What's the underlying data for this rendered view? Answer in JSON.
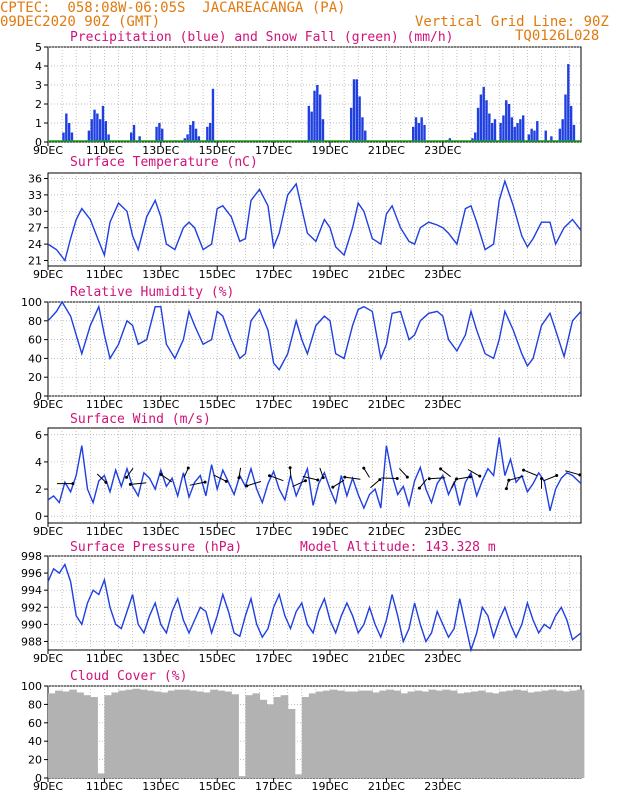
{
  "header": {
    "line1": "CPTEC:  058:08W-06:05S  JACAREACANGA (PA)",
    "line2": "09DEC2020 90Z (GMT)",
    "grid_note": "Vertical Grid Line: 90Z",
    "code": "TQ0126L028"
  },
  "days": [
    "9DEC",
    "11DEC",
    "13DEC",
    "15DEC",
    "17DEC",
    "19DEC",
    "21DEC",
    "23DEC"
  ],
  "colors": {
    "line": "#1f3fe0",
    "snow": "#18a018",
    "cloud": "#b2b2b2",
    "title": "#d0127a",
    "header": "#e07a10"
  },
  "chart_data": [
    {
      "type": "bar",
      "title": "Precipitation (blue) and Snow Fall (green) (mm/h)",
      "ylim": [
        0,
        5
      ],
      "yticks": [
        0,
        1,
        2,
        3,
        4,
        5
      ],
      "series": [
        {
          "name": "Precipitation",
          "color": "#1f3fe0",
          "points": [
            [
              0.55,
              0.5
            ],
            [
              0.65,
              1.5
            ],
            [
              0.75,
              1.0
            ],
            [
              0.85,
              0.5
            ],
            [
              1.45,
              0.6
            ],
            [
              1.55,
              1.2
            ],
            [
              1.65,
              1.7
            ],
            [
              1.75,
              1.5
            ],
            [
              1.85,
              1.2
            ],
            [
              1.95,
              1.9
            ],
            [
              2.05,
              1.1
            ],
            [
              2.15,
              0.4
            ],
            [
              2.95,
              0.5
            ],
            [
              3.05,
              0.9
            ],
            [
              3.25,
              0.3
            ],
            [
              3.85,
              0.8
            ],
            [
              3.95,
              1.0
            ],
            [
              4.05,
              0.7
            ],
            [
              4.85,
              0.2
            ],
            [
              4.95,
              0.4
            ],
            [
              5.05,
              0.9
            ],
            [
              5.15,
              1.1
            ],
            [
              5.25,
              0.7
            ],
            [
              5.35,
              0.3
            ],
            [
              5.65,
              0.8
            ],
            [
              5.75,
              1.0
            ],
            [
              5.85,
              2.8
            ],
            [
              9.25,
              1.9
            ],
            [
              9.35,
              1.6
            ],
            [
              9.45,
              2.7
            ],
            [
              9.55,
              3.0
            ],
            [
              9.65,
              2.5
            ],
            [
              9.75,
              1.2
            ],
            [
              10.75,
              1.8
            ],
            [
              10.85,
              3.3
            ],
            [
              10.95,
              3.3
            ],
            [
              11.05,
              2.4
            ],
            [
              11.15,
              1.3
            ],
            [
              11.25,
              0.6
            ],
            [
              12.95,
              0.8
            ],
            [
              13.05,
              1.3
            ],
            [
              13.15,
              1.0
            ],
            [
              13.25,
              1.3
            ],
            [
              13.35,
              0.9
            ],
            [
              14.15,
              0.1
            ],
            [
              14.25,
              0.2
            ],
            [
              15.05,
              0.2
            ],
            [
              15.15,
              0.5
            ],
            [
              15.25,
              1.8
            ],
            [
              15.35,
              2.5
            ],
            [
              15.45,
              2.9
            ],
            [
              15.55,
              2.2
            ],
            [
              15.65,
              1.5
            ],
            [
              15.75,
              1.0
            ],
            [
              15.85,
              1.2
            ],
            [
              16.05,
              1.0
            ],
            [
              16.15,
              1.4
            ],
            [
              16.25,
              2.2
            ],
            [
              16.35,
              2.0
            ],
            [
              16.45,
              1.3
            ],
            [
              16.55,
              0.8
            ],
            [
              16.65,
              1.0
            ],
            [
              16.75,
              1.2
            ],
            [
              16.85,
              1.4
            ],
            [
              17.05,
              0.4
            ],
            [
              17.15,
              0.7
            ],
            [
              17.25,
              0.6
            ],
            [
              17.35,
              1.1
            ],
            [
              17.65,
              0.6
            ],
            [
              17.85,
              0.3
            ],
            [
              18.15,
              0.7
            ],
            [
              18.25,
              1.2
            ],
            [
              18.35,
              2.5
            ],
            [
              18.45,
              4.1
            ],
            [
              18.55,
              1.9
            ],
            [
              18.65,
              0.9
            ]
          ]
        },
        {
          "name": "Snow Fall",
          "color": "#18a018",
          "points": [
            [
              0,
              0.02
            ],
            [
              18.9,
              0.02
            ],
            [
              14.2,
              0.1
            ]
          ]
        }
      ]
    },
    {
      "type": "line",
      "title": "Surface Temperature (nC)",
      "ylim": [
        20,
        37
      ],
      "yticks": [
        21,
        24,
        27,
        30,
        33,
        36
      ],
      "x": [
        0,
        0.3,
        0.6,
        0.8,
        1.0,
        1.2,
        1.5,
        1.8,
        2.0,
        2.2,
        2.5,
        2.8,
        3.0,
        3.2,
        3.5,
        3.8,
        4.0,
        4.2,
        4.5,
        4.8,
        5.0,
        5.2,
        5.5,
        5.8,
        6.0,
        6.2,
        6.5,
        6.8,
        7.0,
        7.2,
        7.5,
        7.8,
        8.0,
        8.2,
        8.5,
        8.8,
        9.0,
        9.2,
        9.5,
        9.8,
        10.0,
        10.2,
        10.5,
        10.8,
        11.0,
        11.2,
        11.5,
        11.8,
        12.0,
        12.2,
        12.5,
        12.8,
        13.0,
        13.2,
        13.5,
        13.8,
        14.0,
        14.2,
        14.5,
        14.8,
        15.0,
        15.2,
        15.5,
        15.8,
        16.0,
        16.2,
        16.5,
        16.8,
        17.0,
        17.2,
        17.5,
        17.8,
        18.0,
        18.3,
        18.6,
        18.9
      ],
      "values": [
        24.0,
        23.0,
        21.0,
        25.0,
        28.5,
        30.5,
        28.5,
        24.5,
        22.0,
        28.0,
        31.5,
        30.0,
        25.5,
        23.0,
        29.0,
        32.0,
        29.0,
        24.0,
        23.0,
        27.0,
        28.0,
        27.0,
        23.0,
        24.0,
        30.5,
        31.0,
        29.0,
        24.5,
        25.0,
        32.0,
        34.0,
        31.0,
        23.5,
        26.0,
        33.0,
        35.0,
        30.5,
        26.0,
        24.5,
        28.5,
        27.0,
        23.5,
        22.0,
        27.0,
        31.5,
        30.0,
        25.0,
        24.0,
        29.5,
        31.0,
        27.0,
        24.5,
        24.0,
        27.0,
        28.0,
        27.5,
        27.0,
        26.0,
        24.0,
        30.5,
        31.0,
        28.0,
        23.0,
        24.0,
        32.0,
        35.5,
        31.0,
        25.5,
        23.5,
        25.0,
        28.0,
        28.0,
        24.0,
        27.0,
        28.5,
        26.5
      ]
    },
    {
      "type": "line",
      "title": "Relative Humidity (%)",
      "ylim": [
        0,
        100
      ],
      "yticks": [
        0,
        20,
        40,
        60,
        80,
        100
      ],
      "x": [
        0,
        0.3,
        0.5,
        0.8,
        1.0,
        1.2,
        1.5,
        1.8,
        2.0,
        2.2,
        2.5,
        2.8,
        3.0,
        3.2,
        3.5,
        3.8,
        4.0,
        4.2,
        4.5,
        4.8,
        5.0,
        5.2,
        5.5,
        5.8,
        6.0,
        6.2,
        6.5,
        6.8,
        7.0,
        7.2,
        7.5,
        7.8,
        8.0,
        8.2,
        8.5,
        8.8,
        9.0,
        9.2,
        9.5,
        9.8,
        10.0,
        10.2,
        10.5,
        10.8,
        11.0,
        11.2,
        11.5,
        11.8,
        12.0,
        12.2,
        12.5,
        12.8,
        13.0,
        13.2,
        13.5,
        13.8,
        14.0,
        14.2,
        14.5,
        14.8,
        15.0,
        15.2,
        15.5,
        15.8,
        16.0,
        16.2,
        16.5,
        16.8,
        17.0,
        17.2,
        17.5,
        17.8,
        18.0,
        18.3,
        18.6,
        18.9
      ],
      "values": [
        80,
        90,
        100,
        85,
        65,
        45,
        75,
        95,
        65,
        40,
        55,
        80,
        75,
        55,
        60,
        95,
        95,
        55,
        40,
        60,
        90,
        75,
        55,
        60,
        90,
        85,
        60,
        40,
        45,
        80,
        92,
        70,
        35,
        28,
        45,
        80,
        60,
        45,
        75,
        85,
        80,
        45,
        40,
        75,
        92,
        95,
        90,
        40,
        55,
        88,
        90,
        60,
        65,
        80,
        88,
        90,
        85,
        60,
        48,
        65,
        90,
        70,
        45,
        40,
        60,
        90,
        70,
        45,
        32,
        40,
        75,
        88,
        70,
        42,
        80,
        90
      ]
    },
    {
      "type": "line",
      "title": "Surface Wind (m/s)",
      "ylim": [
        -0.5,
        6.5
      ],
      "yticks": [
        0,
        2,
        4,
        6
      ],
      "x": [
        0,
        0.2,
        0.4,
        0.6,
        0.8,
        1.0,
        1.2,
        1.4,
        1.6,
        1.8,
        2.0,
        2.2,
        2.4,
        2.6,
        2.8,
        3.0,
        3.2,
        3.4,
        3.6,
        3.8,
        4.0,
        4.2,
        4.4,
        4.6,
        4.8,
        5.0,
        5.2,
        5.4,
        5.6,
        5.8,
        6.0,
        6.2,
        6.4,
        6.6,
        6.8,
        7.0,
        7.2,
        7.4,
        7.6,
        7.8,
        8.0,
        8.2,
        8.4,
        8.6,
        8.8,
        9.0,
        9.2,
        9.4,
        9.6,
        9.8,
        10.0,
        10.2,
        10.4,
        10.6,
        10.8,
        11.0,
        11.2,
        11.4,
        11.6,
        11.8,
        12.0,
        12.2,
        12.4,
        12.6,
        12.8,
        13.0,
        13.2,
        13.4,
        13.6,
        13.8,
        14.0,
        14.2,
        14.4,
        14.6,
        14.8,
        15.0,
        15.2,
        15.4,
        15.6,
        15.8,
        16.0,
        16.2,
        16.4,
        16.6,
        16.8,
        17.0,
        17.2,
        17.4,
        17.6,
        17.8,
        18.0,
        18.2,
        18.4,
        18.6,
        18.9
      ],
      "values": [
        1.2,
        1.5,
        1.0,
        2.5,
        1.8,
        3.0,
        5.2,
        2.0,
        1.0,
        2.6,
        3.0,
        1.8,
        3.4,
        2.2,
        3.5,
        2.2,
        1.5,
        3.2,
        2.8,
        2.0,
        3.4,
        2.2,
        2.8,
        1.5,
        3.2,
        1.4,
        2.5,
        3.0,
        1.5,
        3.8,
        2.0,
        3.4,
        2.5,
        1.6,
        3.0,
        2.2,
        3.5,
        2.0,
        1.0,
        2.4,
        3.3,
        2.0,
        1.2,
        3.0,
        1.5,
        2.5,
        3.5,
        0.8,
        2.4,
        3.2,
        2.0,
        1.0,
        3.0,
        1.5,
        2.8,
        1.6,
        0.6,
        1.6,
        2.0,
        0.6,
        5.2,
        3.0,
        1.6,
        2.2,
        0.8,
        2.6,
        3.6,
        2.0,
        1.0,
        2.4,
        3.0,
        1.6,
        2.5,
        0.8,
        2.5,
        3.2,
        1.5,
        2.6,
        3.5,
        3.0,
        5.8,
        3.0,
        4.2,
        2.5,
        3.0,
        1.8,
        2.4,
        3.2,
        2.6,
        0.4,
        2.0,
        2.8,
        3.2,
        3.0,
        2.4
      ]
    },
    {
      "type": "line",
      "title": "Surface Pressure (hPa)",
      "subtitle": "Model Altitude: 143.328 m",
      "ylim": [
        987,
        998
      ],
      "yticks": [
        988,
        990,
        992,
        994,
        996,
        998
      ],
      "x": [
        0,
        0.2,
        0.4,
        0.6,
        0.8,
        1.0,
        1.2,
        1.4,
        1.6,
        1.8,
        2.0,
        2.2,
        2.4,
        2.6,
        2.8,
        3.0,
        3.2,
        3.4,
        3.6,
        3.8,
        4.0,
        4.2,
        4.4,
        4.6,
        4.8,
        5.0,
        5.2,
        5.4,
        5.6,
        5.8,
        6.0,
        6.2,
        6.4,
        6.6,
        6.8,
        7.0,
        7.2,
        7.4,
        7.6,
        7.8,
        8.0,
        8.2,
        8.4,
        8.6,
        8.8,
        9.0,
        9.2,
        9.4,
        9.6,
        9.8,
        10.0,
        10.2,
        10.4,
        10.6,
        10.8,
        11.0,
        11.2,
        11.4,
        11.6,
        11.8,
        12.0,
        12.2,
        12.4,
        12.6,
        12.8,
        13.0,
        13.2,
        13.4,
        13.6,
        13.8,
        14.0,
        14.2,
        14.4,
        14.6,
        14.8,
        15.0,
        15.2,
        15.4,
        15.6,
        15.8,
        16.0,
        16.2,
        16.4,
        16.6,
        16.8,
        17.0,
        17.2,
        17.4,
        17.6,
        17.8,
        18.0,
        18.2,
        18.4,
        18.6,
        18.9
      ],
      "values": [
        995.0,
        996.5,
        996.0,
        997.0,
        995.0,
        991.0,
        990.0,
        992.5,
        994.0,
        993.5,
        995.2,
        992.0,
        990.0,
        989.5,
        991.5,
        993.5,
        990.0,
        989.0,
        991.0,
        992.5,
        990.0,
        989.0,
        991.5,
        993.0,
        990.5,
        989.0,
        990.5,
        992.0,
        991.5,
        989.0,
        991.0,
        993.5,
        991.5,
        989.0,
        988.6,
        991.0,
        993.0,
        990.0,
        988.5,
        989.5,
        992.0,
        993.5,
        991.0,
        989.5,
        991.5,
        992.5,
        990.0,
        989.0,
        991.5,
        993.0,
        990.5,
        989.0,
        991.0,
        992.5,
        991.0,
        989.0,
        990.0,
        992.0,
        990.0,
        988.5,
        990.5,
        993.5,
        991.0,
        988.0,
        989.5,
        992.5,
        990.0,
        988.0,
        989.0,
        991.5,
        990.0,
        988.5,
        989.5,
        993.0,
        990.0,
        986.5,
        989.0,
        992.0,
        991.0,
        988.5,
        990.5,
        992.0,
        990.0,
        988.5,
        990.0,
        992.5,
        990.5,
        989.0,
        990.0,
        989.5,
        991.0,
        992.0,
        990.5,
        988.2,
        989.0
      ]
    },
    {
      "type": "bar",
      "title": "Cloud Cover (%)",
      "ylim": [
        0,
        100
      ],
      "yticks": [
        0,
        20,
        40,
        60,
        80,
        100
      ],
      "x": [
        0,
        0.25,
        0.5,
        0.75,
        1.0,
        1.25,
        1.5,
        1.75,
        2.0,
        2.25,
        2.5,
        2.75,
        3.0,
        3.25,
        3.5,
        3.75,
        4.0,
        4.25,
        4.5,
        4.75,
        5.0,
        5.25,
        5.5,
        5.75,
        6.0,
        6.25,
        6.5,
        6.75,
        7.0,
        7.25,
        7.5,
        7.75,
        8.0,
        8.25,
        8.5,
        8.75,
        9.0,
        9.25,
        9.5,
        9.75,
        10.0,
        10.25,
        10.5,
        10.75,
        11.0,
        11.25,
        11.5,
        11.75,
        12.0,
        12.25,
        12.5,
        12.75,
        13.0,
        13.25,
        13.5,
        13.75,
        14.0,
        14.25,
        14.5,
        14.75,
        15.0,
        15.25,
        15.5,
        15.75,
        16.0,
        16.25,
        16.5,
        16.75,
        17.0,
        17.25,
        17.5,
        17.75,
        18.0,
        18.25,
        18.5,
        18.75
      ],
      "values": [
        92,
        95,
        94,
        96,
        93,
        90,
        88,
        5,
        90,
        93,
        95,
        96,
        97,
        96,
        95,
        94,
        93,
        95,
        96,
        96,
        95,
        94,
        93,
        96,
        95,
        94,
        91,
        2,
        90,
        92,
        85,
        80,
        88,
        90,
        75,
        4,
        88,
        92,
        94,
        95,
        96,
        95,
        94,
        94,
        95,
        95,
        93,
        95,
        96,
        95,
        92,
        94,
        95,
        94,
        96,
        95,
        96,
        95,
        92,
        93,
        94,
        95,
        93,
        92,
        94,
        95,
        96,
        95,
        93,
        94,
        95,
        96,
        95,
        94,
        95,
        96
      ]
    }
  ]
}
